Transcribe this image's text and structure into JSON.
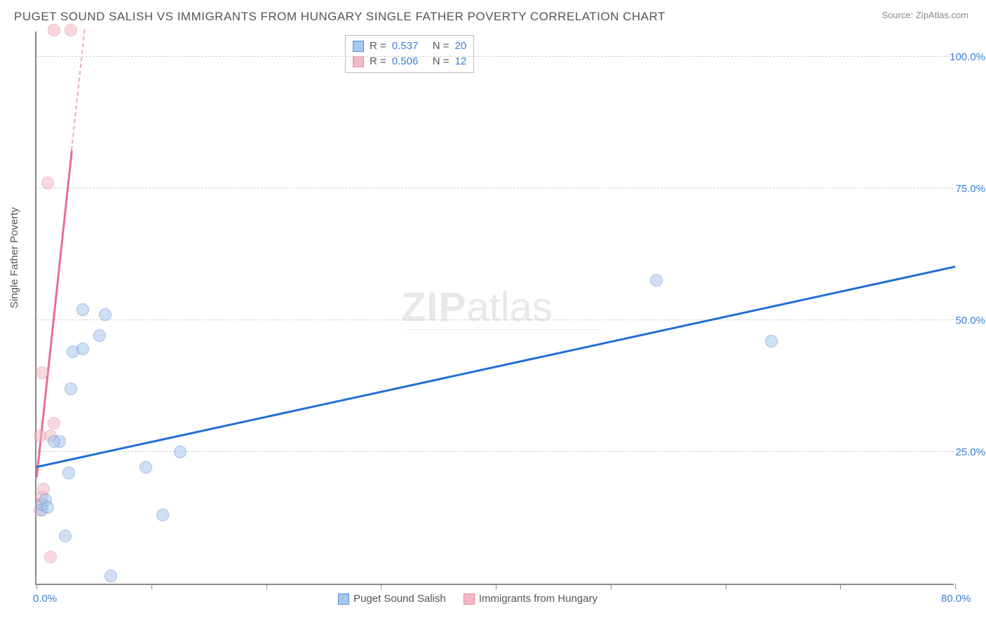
{
  "title": "PUGET SOUND SALISH VS IMMIGRANTS FROM HUNGARY SINGLE FATHER POVERTY CORRELATION CHART",
  "source": "Source: ZipAtlas.com",
  "ylabel": "Single Father Poverty",
  "watermark_zip": "ZIP",
  "watermark_atlas": "atlas",
  "chart": {
    "type": "scatter",
    "xlim": [
      0,
      80
    ],
    "ylim": [
      0,
      105
    ],
    "background_color": "#ffffff",
    "grid_color": "#d0d0d0",
    "axis_color": "#888888",
    "tick_label_color": "#3b7dd8",
    "x_ticks": [
      0,
      10,
      20,
      30,
      40,
      50,
      60,
      70,
      80
    ],
    "x_tick_labels": {
      "0": "0.0%",
      "80": "80.0%"
    },
    "y_gridlines": [
      25,
      50,
      75,
      100
    ],
    "y_tick_labels": {
      "25": "25.0%",
      "50": "50.0%",
      "75": "75.0%",
      "100": "100.0%"
    },
    "marker_radius": 9,
    "marker_opacity": 0.55,
    "series": [
      {
        "name": "Puget Sound Salish",
        "fill_color": "#a8c7ec",
        "stroke_color": "#5a8fd6",
        "line_color": "#1f6fd4",
        "R": "0.537",
        "N": "20",
        "trend": {
          "x1": 0,
          "y1": 22,
          "x2": 80,
          "y2": 60
        },
        "points": [
          {
            "x": 0.5,
            "y": 14
          },
          {
            "x": 0.5,
            "y": 15
          },
          {
            "x": 0.8,
            "y": 16
          },
          {
            "x": 2.0,
            "y": 27
          },
          {
            "x": 2.5,
            "y": 9
          },
          {
            "x": 2.8,
            "y": 21
          },
          {
            "x": 3.0,
            "y": 37
          },
          {
            "x": 3.2,
            "y": 44
          },
          {
            "x": 4.0,
            "y": 44.5
          },
          {
            "x": 4.0,
            "y": 52
          },
          {
            "x": 5.5,
            "y": 47
          },
          {
            "x": 6.0,
            "y": 51
          },
          {
            "x": 6.5,
            "y": 1.5
          },
          {
            "x": 9.5,
            "y": 22
          },
          {
            "x": 11.0,
            "y": 13
          },
          {
            "x": 12.5,
            "y": 25
          },
          {
            "x": 54.0,
            "y": 57.5
          },
          {
            "x": 64.0,
            "y": 46
          },
          {
            "x": 1.0,
            "y": 14.5
          },
          {
            "x": 1.5,
            "y": 27
          }
        ]
      },
      {
        "name": "Immigrants from Hungary",
        "fill_color": "#f3b8c6",
        "stroke_color": "#e58aa0",
        "line_color": "#e76f8d",
        "R": "0.506",
        "N": "12",
        "trend": {
          "x1": 0,
          "y1": 20,
          "x2": 4.2,
          "y2": 105
        },
        "trend_dashed_above": 82,
        "points": [
          {
            "x": 0.3,
            "y": 14
          },
          {
            "x": 0.4,
            "y": 15
          },
          {
            "x": 0.5,
            "y": 16.5
          },
          {
            "x": 0.6,
            "y": 18
          },
          {
            "x": 0.3,
            "y": 28
          },
          {
            "x": 1.2,
            "y": 28
          },
          {
            "x": 1.5,
            "y": 30.5
          },
          {
            "x": 0.5,
            "y": 40
          },
          {
            "x": 1.0,
            "y": 76
          },
          {
            "x": 1.5,
            "y": 105
          },
          {
            "x": 3.0,
            "y": 105
          },
          {
            "x": 1.2,
            "y": 5
          }
        ]
      }
    ]
  },
  "legend": {
    "series1_label": "Puget Sound Salish",
    "series2_label": "Immigrants from Hungary"
  },
  "stats_labels": {
    "R": "R  =",
    "N": "N  ="
  }
}
